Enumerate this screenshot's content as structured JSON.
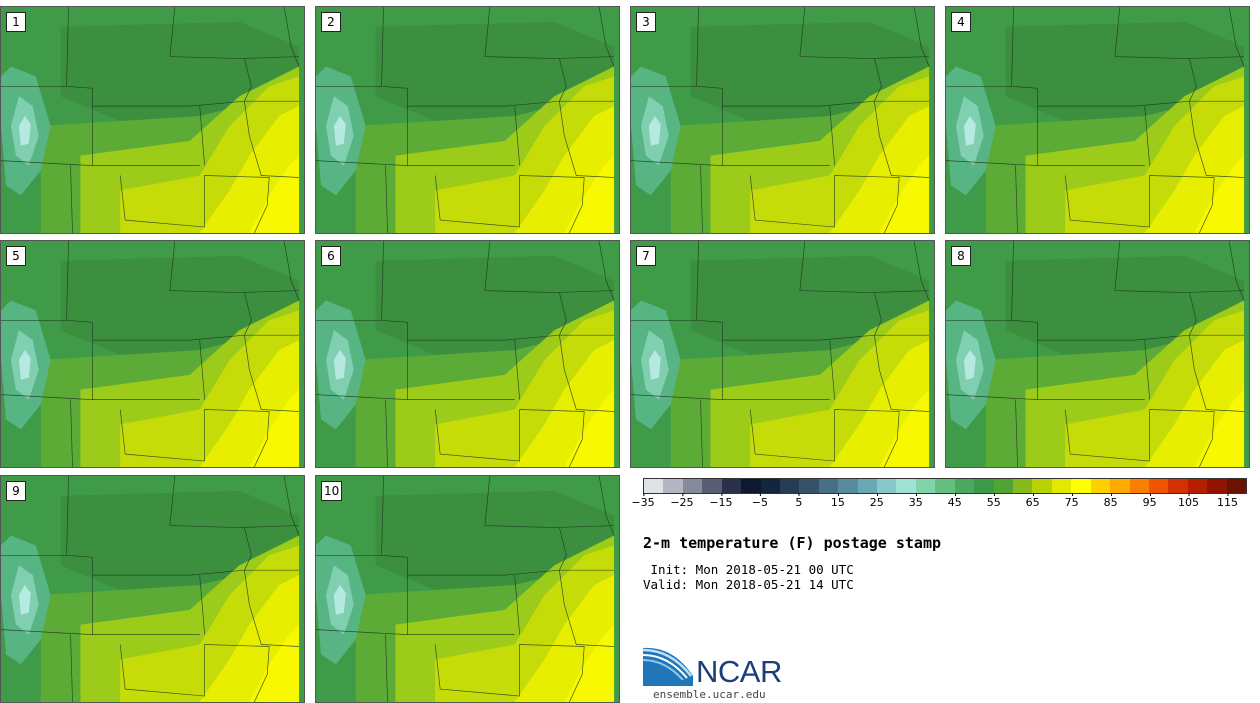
{
  "panels": [
    {
      "label": "1"
    },
    {
      "label": "2"
    },
    {
      "label": "3"
    },
    {
      "label": "4"
    },
    {
      "label": "5"
    },
    {
      "label": "6"
    },
    {
      "label": "7"
    },
    {
      "label": "8"
    },
    {
      "label": "9"
    },
    {
      "label": "10"
    }
  ],
  "colorbar": {
    "colors": [
      "#dfe3e8",
      "#b2b7c1",
      "#858b9a",
      "#585e73",
      "#2b3149",
      "#0e1830",
      "#14263f",
      "#263c52",
      "#36526a",
      "#467085",
      "#578c9e",
      "#6ba8b4",
      "#89c7c8",
      "#9fe3d6",
      "#7fd4a8",
      "#65c07f",
      "#4aa95e",
      "#3b9a48",
      "#4ea532",
      "#85bc1c",
      "#b8d304",
      "#e3ea00",
      "#ffff00",
      "#ffd000",
      "#ffaa00",
      "#fa7f00",
      "#ef5500",
      "#d43100",
      "#b61e00",
      "#911300",
      "#6b1200"
    ],
    "ticks": [
      "−35",
      "−25",
      "−15",
      "−5",
      "5",
      "15",
      "25",
      "35",
      "45",
      "55",
      "65",
      "75",
      "85",
      "95",
      "105",
      "115"
    ]
  },
  "title": "2-m temperature (F) postage stamp",
  "init": " Init: Mon 2018-05-21 00 UTC",
  "valid": "Valid: Mon 2018-05-21 14 UTC",
  "logo": {
    "text": "NCAR"
  },
  "website": "ensemble.ucar.edu"
}
